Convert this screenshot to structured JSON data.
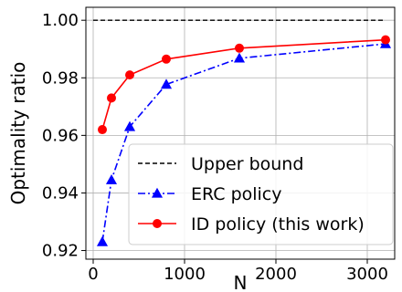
{
  "chart_data": {
    "type": "line",
    "xlabel": "N",
    "ylabel": "Optimality ratio",
    "xlim": [
      -80,
      3300
    ],
    "ylim": [
      0.917,
      1.0045
    ],
    "x_ticks": [
      0,
      1000,
      2000,
      3000
    ],
    "x_tick_labels": [
      "0",
      "1000",
      "2000",
      "3000"
    ],
    "y_ticks": [
      0.92,
      0.94,
      0.96,
      0.98,
      1.0
    ],
    "y_tick_labels": [
      "0.92",
      "0.94",
      "0.96",
      "0.98",
      "1.00"
    ],
    "grid": true,
    "legend_placement": "lower-right",
    "series": [
      {
        "name": "Upper bound",
        "style": "dashed",
        "color": "#000000",
        "marker": "none",
        "x": [
          0,
          3200
        ],
        "y": [
          1.0,
          1.0
        ]
      },
      {
        "name": "ERC policy",
        "style": "dashdot",
        "color": "#0000ff",
        "marker": "triangle",
        "x": [
          100,
          200,
          400,
          800,
          1600,
          3200
        ],
        "y": [
          0.923,
          0.9445,
          0.963,
          0.9777,
          0.9868,
          0.9918
        ]
      },
      {
        "name": "ID policy (this work)",
        "style": "solid",
        "color": "#ff0000",
        "marker": "circle",
        "x": [
          100,
          200,
          400,
          800,
          1600,
          3200
        ],
        "y": [
          0.962,
          0.973,
          0.981,
          0.9865,
          0.9903,
          0.9932
        ]
      }
    ]
  }
}
